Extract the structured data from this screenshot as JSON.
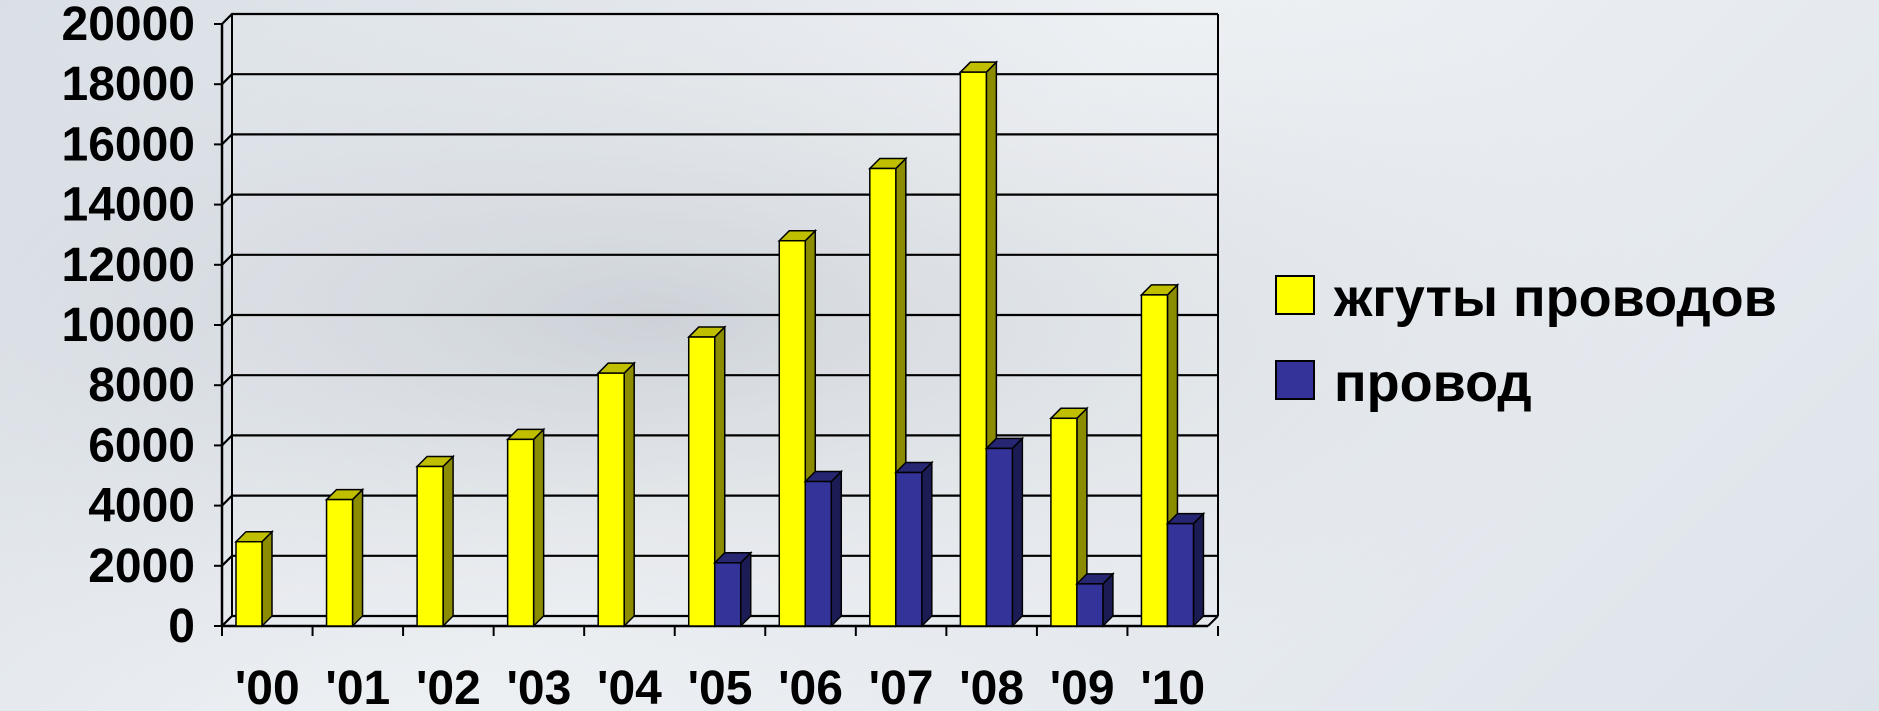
{
  "chart_data": {
    "type": "bar",
    "categories": [
      "'00",
      "'01",
      "'02",
      "'03",
      "'04",
      "'05",
      "'06",
      "'07",
      "'08",
      "'09",
      "'10"
    ],
    "series": [
      {
        "name": "жгуты проводов",
        "color": "#ffff00",
        "values": [
          2800,
          4200,
          5300,
          6200,
          8400,
          9600,
          12800,
          15200,
          18400,
          6900,
          11000
        ]
      },
      {
        "name": "провод",
        "color": "#333399",
        "values": [
          0,
          0,
          0,
          0,
          0,
          2100,
          4800,
          5100,
          5900,
          1400,
          3400
        ]
      }
    ],
    "ylim": [
      0,
      20000
    ],
    "yticks": [
      "0",
      "2000",
      "4000",
      "6000",
      "8000",
      "10000",
      "12000",
      "14000",
      "16000",
      "18000",
      "20000"
    ],
    "grid": true,
    "legend_position": "right",
    "title": "",
    "xlabel": "",
    "ylabel": ""
  }
}
